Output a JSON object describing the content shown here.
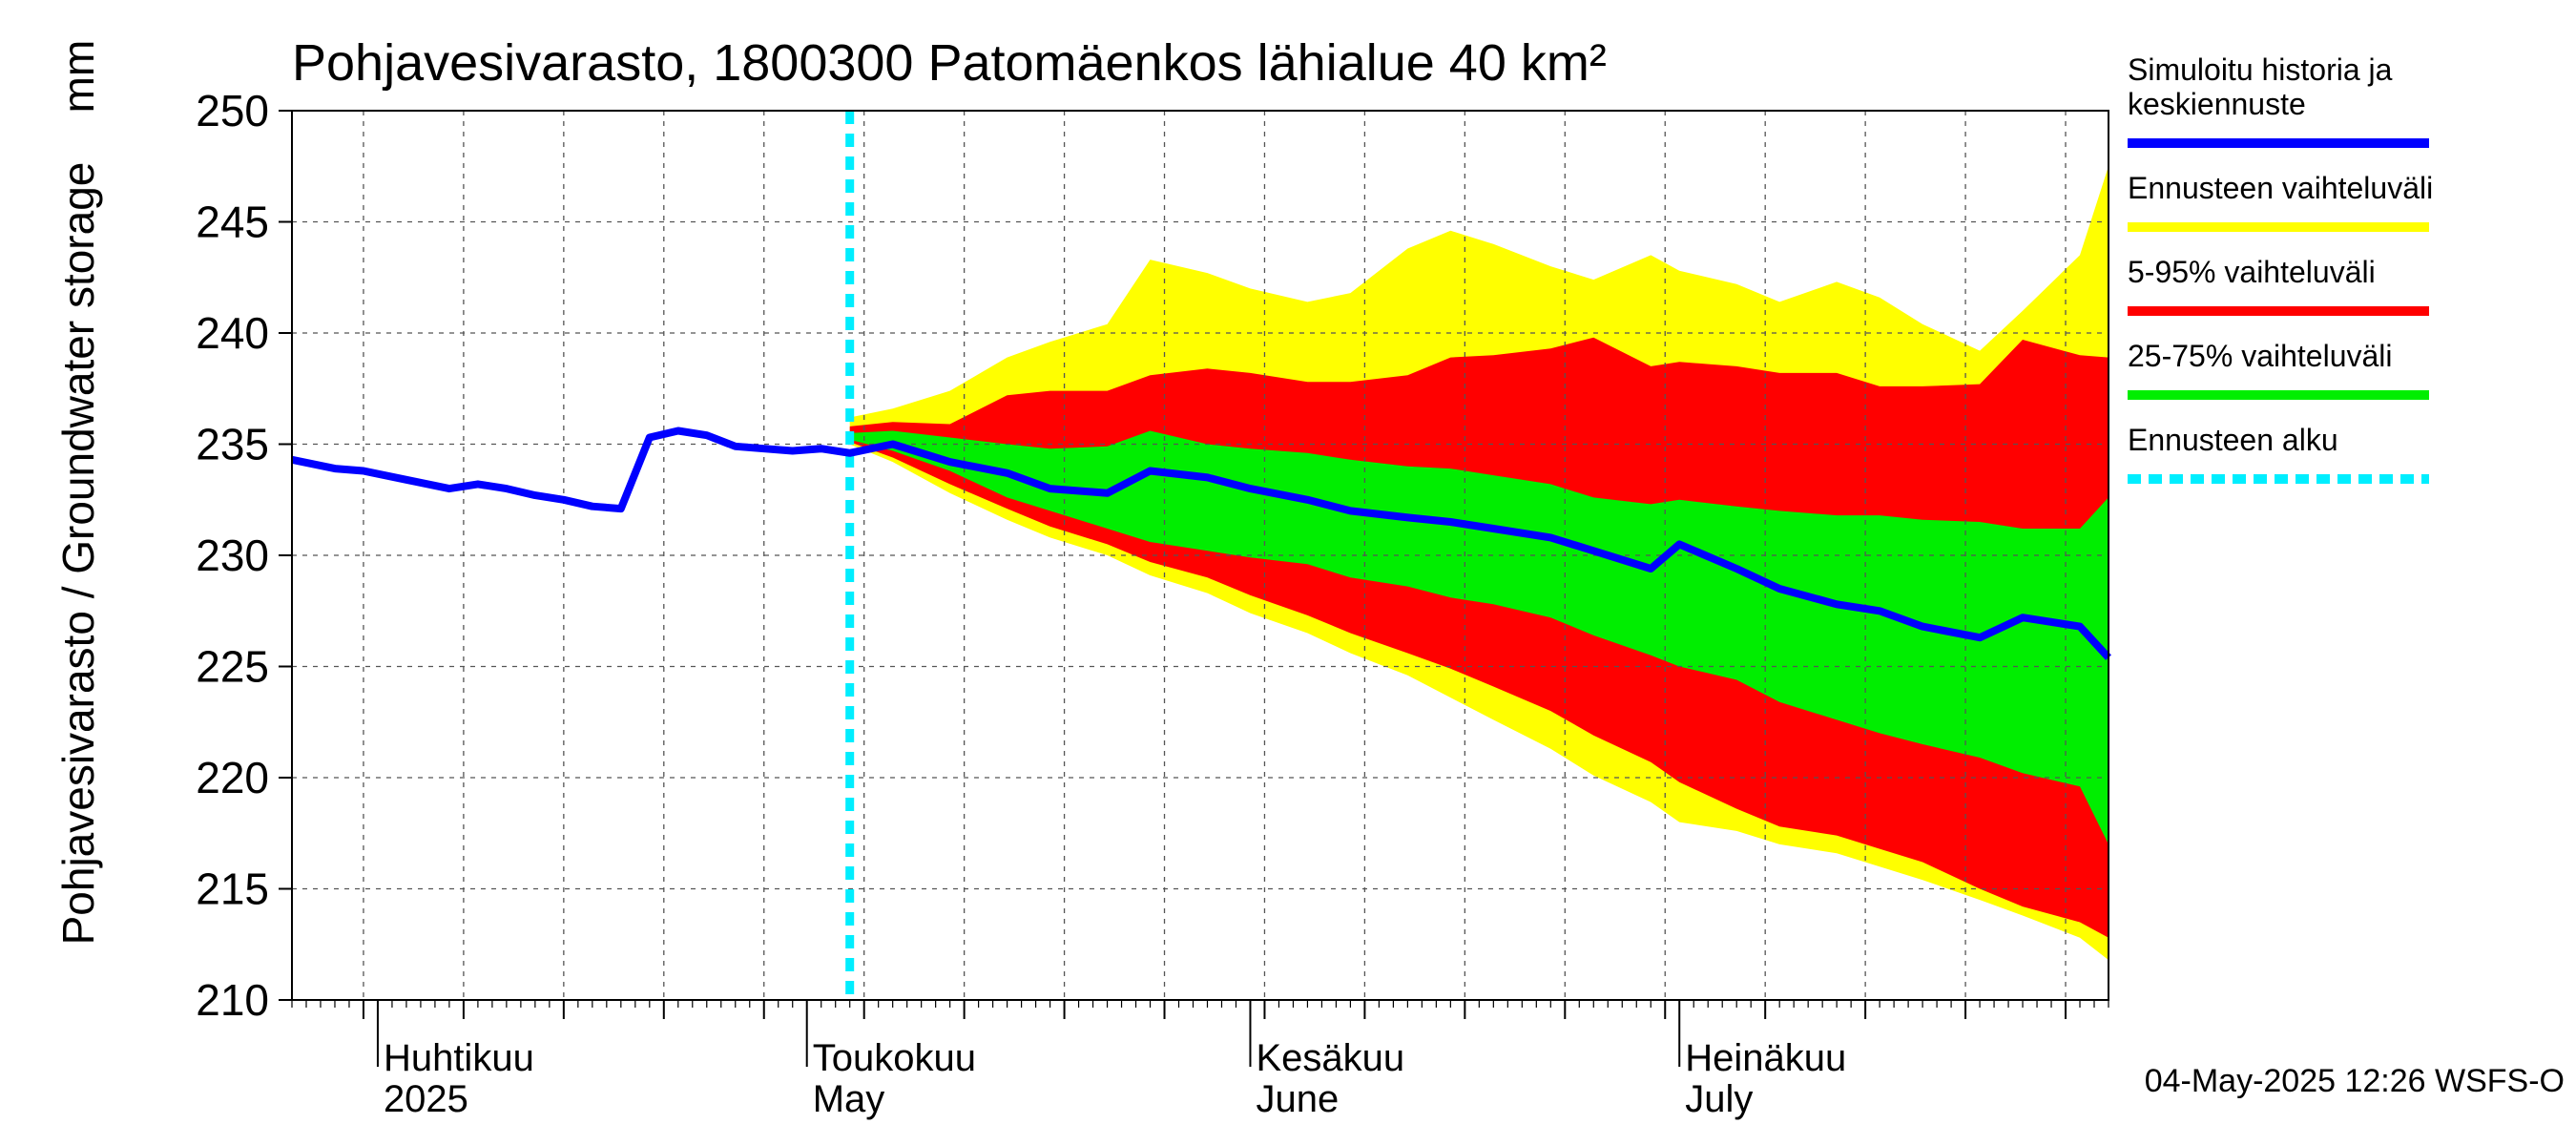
{
  "chart_data": {
    "type": "area",
    "title": "Pohjavesivarasto, 1800300 Patomäenkos lähialue 40 km²",
    "ylabel": "Pohjavesivarasto / Groundwater storage",
    "yunit": "mm",
    "ylim": [
      210,
      250
    ],
    "yticks": [
      210,
      215,
      220,
      225,
      230,
      235,
      240,
      245,
      250
    ],
    "x_range": [
      "2025-03-26",
      "2025-07-31"
    ],
    "months": [
      {
        "date": "2025-04-01",
        "fi": "Huhtikuu",
        "en": "2025"
      },
      {
        "date": "2025-05-01",
        "fi": "Toukokuu",
        "en": "May"
      },
      {
        "date": "2025-06-01",
        "fi": "Kesäkuu",
        "en": "June"
      },
      {
        "date": "2025-07-01",
        "fi": "Heinäkuu",
        "en": "July"
      }
    ],
    "grid": true,
    "forecast_start": "2025-05-04",
    "timestamp": "04-May-2025 12:26 WSFS-O",
    "legend": {
      "placement": "right",
      "entries": [
        {
          "label": "Simuloitu historia ja keskiennuste",
          "color": "#0000ff"
        },
        {
          "label": "Ennusteen vaihteluväli",
          "color": "#ffff00"
        },
        {
          "label": "5-95% vaihteluväli",
          "color": "#ff0000"
        },
        {
          "label": "25-75% vaihteluväli",
          "color": "#00ee00"
        },
        {
          "label": "Ennusteen alku",
          "color": "#00eeff"
        }
      ]
    },
    "history": {
      "name": "Simuloitu historia ja keskiennuste",
      "color": "#0000ff",
      "x": [
        "2025-03-26",
        "2025-03-29",
        "2025-03-31",
        "2025-04-03",
        "2025-04-06",
        "2025-04-08",
        "2025-04-10",
        "2025-04-12",
        "2025-04-14",
        "2025-04-16",
        "2025-04-18",
        "2025-04-20",
        "2025-04-22",
        "2025-04-24",
        "2025-04-26",
        "2025-04-28",
        "2025-04-30",
        "2025-05-02",
        "2025-05-04"
      ],
      "y": [
        234.3,
        233.9,
        233.8,
        233.4,
        233.0,
        233.2,
        233.0,
        232.7,
        232.5,
        232.2,
        232.1,
        235.3,
        235.6,
        235.4,
        234.9,
        234.8,
        234.7,
        234.8,
        234.6
      ]
    },
    "forecast": {
      "x": [
        "2025-05-04",
        "2025-05-07",
        "2025-05-11",
        "2025-05-15",
        "2025-05-18",
        "2025-05-22",
        "2025-05-25",
        "2025-05-29",
        "2025-06-01",
        "2025-06-05",
        "2025-06-08",
        "2025-06-12",
        "2025-06-15",
        "2025-06-18",
        "2025-06-22",
        "2025-06-25",
        "2025-06-29",
        "2025-07-01",
        "2025-07-05",
        "2025-07-08",
        "2025-07-12",
        "2025-07-15",
        "2025-07-18",
        "2025-07-22",
        "2025-07-25",
        "2025-07-29",
        "2025-07-31"
      ],
      "median": [
        235.4,
        235.0,
        234.2,
        233.7,
        233.0,
        232.8,
        233.8,
        233.5,
        233.0,
        232.5,
        232.0,
        231.7,
        231.5,
        231.2,
        230.8,
        230.2,
        229.4,
        230.5,
        229.4,
        228.5,
        227.8,
        227.5,
        226.8,
        226.3,
        227.2,
        226.8,
        225.4
      ],
      "p25": [
        235.2,
        234.7,
        233.8,
        232.6,
        232.0,
        231.2,
        230.6,
        230.2,
        229.9,
        229.6,
        229.0,
        228.6,
        228.1,
        227.8,
        227.2,
        226.4,
        225.5,
        225.0,
        224.4,
        223.4,
        222.6,
        222.0,
        221.5,
        220.9,
        220.2,
        219.6,
        217.0
      ],
      "p75": [
        235.5,
        235.6,
        235.3,
        235.0,
        234.8,
        234.9,
        235.6,
        235.0,
        234.8,
        234.6,
        234.3,
        234.0,
        233.9,
        233.6,
        233.2,
        232.6,
        232.3,
        232.5,
        232.2,
        232.0,
        231.8,
        231.8,
        231.6,
        231.5,
        231.2,
        231.2,
        232.6
      ],
      "p5": [
        235.1,
        234.4,
        233.2,
        232.1,
        231.3,
        230.5,
        229.7,
        229.0,
        228.2,
        227.3,
        226.5,
        225.6,
        224.9,
        224.1,
        223.0,
        221.9,
        220.7,
        219.8,
        218.6,
        217.8,
        217.4,
        216.8,
        216.2,
        215.0,
        214.2,
        213.5,
        212.8
      ],
      "p95": [
        235.8,
        236.0,
        235.9,
        237.2,
        237.4,
        237.4,
        238.1,
        238.4,
        238.2,
        237.8,
        237.8,
        238.1,
        238.9,
        239.0,
        239.3,
        239.8,
        238.5,
        238.7,
        238.5,
        238.2,
        238.2,
        237.6,
        237.6,
        237.7,
        239.7,
        239.0,
        238.9
      ],
      "min": [
        235.0,
        234.2,
        232.8,
        231.6,
        230.8,
        230.0,
        229.1,
        228.3,
        227.4,
        226.5,
        225.6,
        224.6,
        223.6,
        222.6,
        221.3,
        220.1,
        218.9,
        218.0,
        217.6,
        217.0,
        216.6,
        216.0,
        215.4,
        214.5,
        213.8,
        212.8,
        211.8
      ],
      "max": [
        236.2,
        236.6,
        237.4,
        238.9,
        239.6,
        240.4,
        243.3,
        242.7,
        242.0,
        241.4,
        241.8,
        243.8,
        244.6,
        244.0,
        243.0,
        242.4,
        243.5,
        242.8,
        242.2,
        241.4,
        242.3,
        241.6,
        240.4,
        239.2,
        241.0,
        243.5,
        247.5
      ]
    }
  }
}
